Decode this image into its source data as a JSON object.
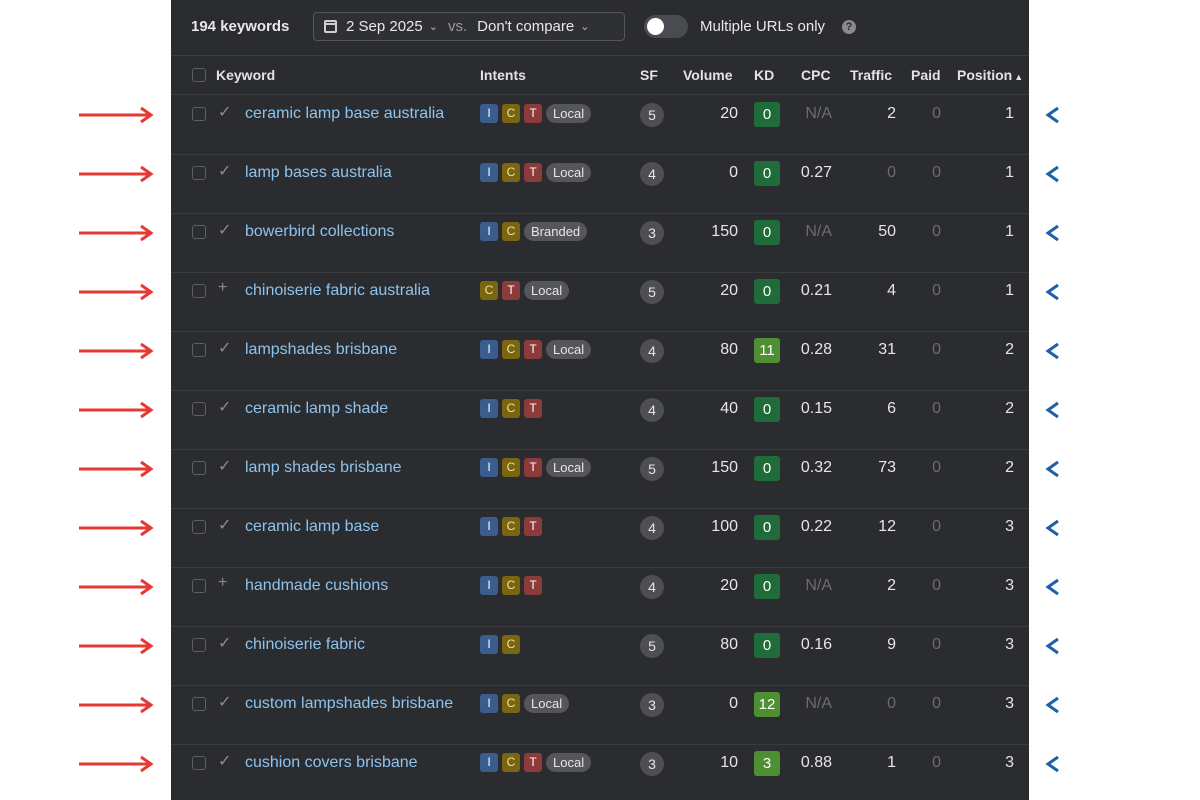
{
  "toolbar": {
    "keyword_count": "194 keywords",
    "date": "2 Sep 2025",
    "vs_label": "vs.",
    "compare": "Don't compare",
    "multiple_urls_label": "Multiple URLs only",
    "multiple_urls_on": false,
    "help": "?"
  },
  "columns": {
    "keyword": "Keyword",
    "intents": "Intents",
    "sf": "SF",
    "volume": "Volume",
    "kd": "KD",
    "cpc": "CPC",
    "traffic": "Traffic",
    "paid": "Paid",
    "position": "Position",
    "sort_indicator": "▲"
  },
  "rows": [
    {
      "status": "✓",
      "keyword": "ceramic lamp base australia",
      "intents": [
        "I",
        "C",
        "T"
      ],
      "tag": "Local",
      "sf": "5",
      "volume": "20",
      "kd": "0",
      "cpc": "N/A",
      "traffic": "2",
      "paid": "0",
      "position": "1"
    },
    {
      "status": "✓",
      "keyword": "lamp bases australia",
      "intents": [
        "I",
        "C",
        "T"
      ],
      "tag": "Local",
      "sf": "4",
      "volume": "0",
      "kd": "0",
      "cpc": "0.27",
      "traffic": "0",
      "paid": "0",
      "position": "1"
    },
    {
      "status": "✓",
      "keyword": "bowerbird collections",
      "intents": [
        "I",
        "C"
      ],
      "tag": "Branded",
      "sf": "3",
      "volume": "150",
      "kd": "0",
      "cpc": "N/A",
      "traffic": "50",
      "paid": "0",
      "position": "1"
    },
    {
      "status": "+",
      "keyword": "chinoiserie fabric australia",
      "intents": [
        "C",
        "T"
      ],
      "tag": "Local",
      "sf": "5",
      "volume": "20",
      "kd": "0",
      "cpc": "0.21",
      "traffic": "4",
      "paid": "0",
      "position": "1"
    },
    {
      "status": "✓",
      "keyword": "lampshades brisbane",
      "intents": [
        "I",
        "C",
        "T"
      ],
      "tag": "Local",
      "sf": "4",
      "volume": "80",
      "kd": "11",
      "cpc": "0.28",
      "traffic": "31",
      "paid": "0",
      "position": "2"
    },
    {
      "status": "✓",
      "keyword": "ceramic lamp shade",
      "intents": [
        "I",
        "C",
        "T"
      ],
      "tag": "",
      "sf": "4",
      "volume": "40",
      "kd": "0",
      "cpc": "0.15",
      "traffic": "6",
      "paid": "0",
      "position": "2"
    },
    {
      "status": "✓",
      "keyword": "lamp shades brisbane",
      "intents": [
        "I",
        "C",
        "T"
      ],
      "tag": "Local",
      "sf": "5",
      "volume": "150",
      "kd": "0",
      "cpc": "0.32",
      "traffic": "73",
      "paid": "0",
      "position": "2"
    },
    {
      "status": "✓",
      "keyword": "ceramic lamp base",
      "intents": [
        "I",
        "C",
        "T"
      ],
      "tag": "",
      "sf": "4",
      "volume": "100",
      "kd": "0",
      "cpc": "0.22",
      "traffic": "12",
      "paid": "0",
      "position": "3"
    },
    {
      "status": "+",
      "keyword": "handmade cushions",
      "intents": [
        "I",
        "C",
        "T"
      ],
      "tag": "",
      "sf": "4",
      "volume": "20",
      "kd": "0",
      "cpc": "N/A",
      "traffic": "2",
      "paid": "0",
      "position": "3"
    },
    {
      "status": "✓",
      "keyword": "chinoiserie fabric",
      "intents": [
        "I",
        "C"
      ],
      "tag": "",
      "sf": "5",
      "volume": "80",
      "kd": "0",
      "cpc": "0.16",
      "traffic": "9",
      "paid": "0",
      "position": "3"
    },
    {
      "status": "✓",
      "keyword": "custom lampshades brisbane",
      "intents": [
        "I",
        "C"
      ],
      "tag": "Local",
      "sf": "3",
      "volume": "0",
      "kd": "12",
      "cpc": "N/A",
      "traffic": "0",
      "paid": "0",
      "position": "3"
    },
    {
      "status": "✓",
      "keyword": "cushion covers brisbane",
      "intents": [
        "I",
        "C",
        "T"
      ],
      "tag": "Local",
      "sf": "3",
      "volume": "10",
      "kd": "3",
      "cpc": "0.88",
      "traffic": "1",
      "paid": "0",
      "position": "3"
    }
  ],
  "colors": {
    "panel_bg": "#2b2c2f",
    "keyword_link": "#8cc4ef",
    "kd_green": "#1f6b3a",
    "kd_light_green": "#4f8f33",
    "intent_informational": "#3b5d8e",
    "intent_commercial": "#7a6510",
    "intent_transactional": "#8c3a3a",
    "arrow_red": "#e53935",
    "arrow_blue": "#1e5fa8"
  },
  "icons": {
    "calendar": "calendar-icon",
    "chevron": "chevron-down-icon",
    "help": "help-icon",
    "row_arrow_left": "arrow-right-icon",
    "row_arrow_right": "arrow-left-icon"
  }
}
